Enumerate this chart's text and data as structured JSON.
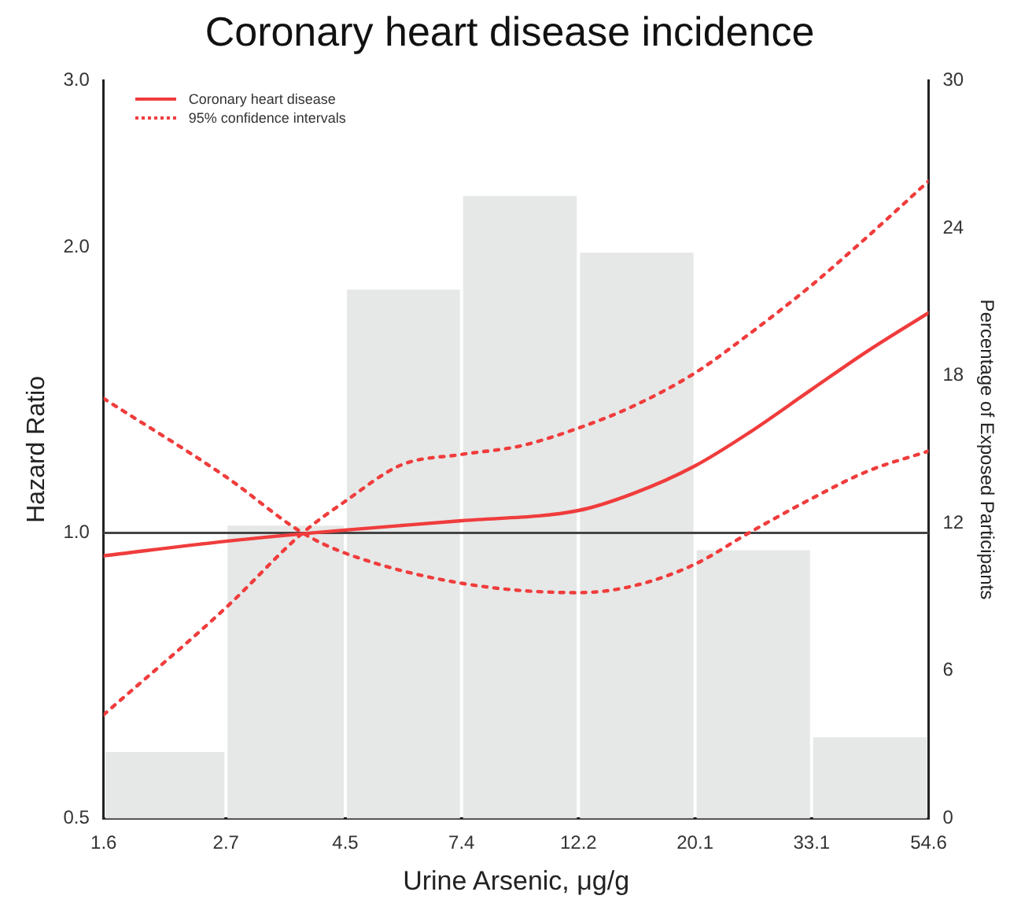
{
  "chart_data": {
    "type": "line",
    "title": "Coronary heart disease incidence",
    "xlabel": "Urine Arsenic, μg/g",
    "ylabel": "Hazard Ratio",
    "y2label": "Percentage of Exposed Participants",
    "log": "xy",
    "grid": false,
    "legend": "top left",
    "marker": "none",
    "xlim": [
      1.6,
      54.6
    ],
    "xticks": [
      1.6,
      2.7,
      4.5,
      7.4,
      12.2,
      20.1,
      33.1,
      54.6
    ],
    "ylim": [
      0.5,
      3
    ],
    "yticks": [
      {
        "value": 0.5,
        "label": "0.5"
      },
      {
        "value": 1,
        "label": "1.0"
      },
      {
        "value": 2,
        "label": "2.0"
      },
      {
        "value": 3,
        "label": "3.0"
      }
    ],
    "y2lim": [
      0,
      30
    ],
    "y2ticks": [
      0,
      6,
      12,
      18,
      24,
      30
    ],
    "ref_lines": [
      {
        "axis": "y",
        "value": 1,
        "color": "#444444"
      }
    ],
    "series": [
      {
        "type": "histogram",
        "axis": "y2",
        "color": "#e6e7e7",
        "bins": [
          1.6,
          2.7,
          4.5,
          7.4,
          12.2,
          20.1,
          33.1,
          54.6
        ],
        "values": [
          2.7,
          11.9,
          21.5,
          25.3,
          23.0,
          10.9,
          3.3
        ]
      },
      {
        "type": "line",
        "name": "Coronary heart disease",
        "color": "#f03c3c",
        "line_style": "solid",
        "x": [
          1.6,
          2.7,
          4.5,
          7.4,
          12.2,
          15.4,
          20.1,
          25.3,
          33.1,
          42.1,
          54.6
        ],
        "values": [
          0.946,
          0.98,
          1.007,
          1.03,
          1.056,
          1.1,
          1.177,
          1.275,
          1.417,
          1.556,
          1.707
        ]
      },
      {
        "type": "line",
        "name": "95% confidence intervals",
        "color": "#f03c3c",
        "line_style": "dotted",
        "x": [
          1.6,
          2.7,
          3.75,
          4.5,
          5.73,
          7.4,
          9.5,
          12.2,
          15.4,
          20.1,
          25.3,
          33.1,
          42.1,
          54.6
        ],
        "values": [
          0.643,
          0.834,
          1.0,
          1.08,
          1.18,
          1.21,
          1.235,
          1.29,
          1.36,
          1.475,
          1.62,
          1.825,
          2.055,
          2.35
        ]
      },
      {
        "type": "line",
        "color": "#f03c3c",
        "line_style": "dotted",
        "x": [
          1.6,
          2.7,
          3.75,
          4.5,
          7.4,
          12.2,
          15.4,
          20.1,
          25.3,
          33.1,
          42.1,
          54.6
        ],
        "values": [
          1.386,
          1.146,
          1.0,
          0.952,
          0.885,
          0.865,
          0.879,
          0.927,
          1.0,
          1.087,
          1.162,
          1.22
        ]
      }
    ]
  }
}
